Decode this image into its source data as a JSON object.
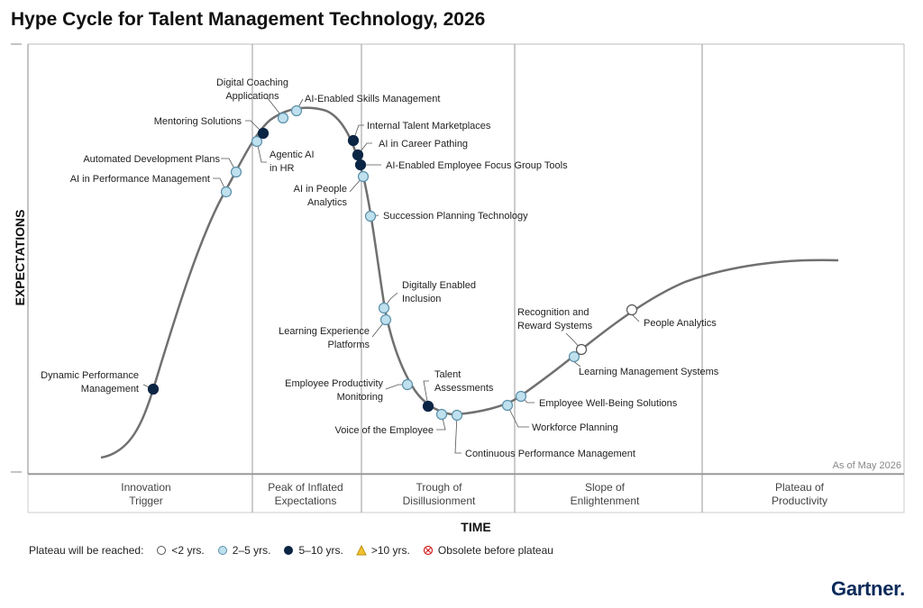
{
  "title": "Hype Cycle for Talent Management Technology, 2026",
  "axes": {
    "y_label": "EXPECTATIONS",
    "x_label": "TIME"
  },
  "as_of": "As of May 2026",
  "phases": [
    {
      "l1": "Innovation",
      "l2": "Trigger"
    },
    {
      "l1": "Peak of Inflated",
      "l2": "Expectations"
    },
    {
      "l1": "Trough of",
      "l2": "Disillusionment"
    },
    {
      "l1": "Slope of",
      "l2": "Enlightenment"
    },
    {
      "l1": "Plateau of",
      "l2": "Productivity"
    }
  ],
  "legend": {
    "prefix": "Plateau will be reached:",
    "items": [
      {
        "label": "<2 yrs.",
        "fill": "#ffffff",
        "stroke": "#555555",
        "shape": "circle"
      },
      {
        "label": "2–5 yrs.",
        "fill": "#bfe0ee",
        "stroke": "#5a8fa8",
        "shape": "circle"
      },
      {
        "label": "5–10 yrs.",
        "fill": "#0b2545",
        "stroke": "#0b2545",
        "shape": "circle"
      },
      {
        "label": ">10 yrs.",
        "fill": "#f2c230",
        "stroke": "#c09010",
        "shape": "triangle"
      },
      {
        "label": "Obsolete before plateau",
        "fill": "#ffffff",
        "stroke": "#d02020",
        "shape": "xcircle"
      }
    ]
  },
  "colors": {
    "curve": "#707070",
    "lt2": "#ffffff",
    "2to5": "#bfe0ee",
    "5to10": "#0b2545"
  },
  "logo": "Gartner.",
  "technologies": [
    {
      "name": "Dynamic Performance\nManagement",
      "category": "5to10"
    },
    {
      "name": "AI in Performance Management",
      "category": "2to5"
    },
    {
      "name": "Automated Development Plans",
      "category": "2to5"
    },
    {
      "name": "Agentic AI\nin HR",
      "category": "2to5"
    },
    {
      "name": "Mentoring Solutions",
      "category": "5to10"
    },
    {
      "name": "Digital Coaching\nApplications",
      "category": "2to5"
    },
    {
      "name": "AI-Enabled Skills Management",
      "category": "2to5"
    },
    {
      "name": "Internal Talent Marketplaces",
      "category": "5to10"
    },
    {
      "name": "AI in Career Pathing",
      "category": "5to10"
    },
    {
      "name": "AI-Enabled Employee Focus Group Tools",
      "category": "5to10"
    },
    {
      "name": "AI in People\nAnalytics",
      "category": "2to5"
    },
    {
      "name": "Succession Planning Technology",
      "category": "2to5"
    },
    {
      "name": "Digitally Enabled\nInclusion",
      "category": "2to5"
    },
    {
      "name": "Learning Experience\nPlatforms",
      "category": "2to5"
    },
    {
      "name": "Employee Productivity\nMonitoring",
      "category": "2to5"
    },
    {
      "name": "Talent\nAssessments",
      "category": "5to10"
    },
    {
      "name": "Voice of the Employee",
      "category": "2to5"
    },
    {
      "name": "Continuous Performance Management",
      "category": "2to5"
    },
    {
      "name": "Workforce Planning",
      "category": "2to5"
    },
    {
      "name": "Employee Well-Being Solutions",
      "category": "2to5"
    },
    {
      "name": "Learning Management Systems",
      "category": "2to5"
    },
    {
      "name": "Recognition and\nReward Systems",
      "category": "lt2"
    },
    {
      "name": "People Analytics",
      "category": "lt2"
    }
  ]
}
